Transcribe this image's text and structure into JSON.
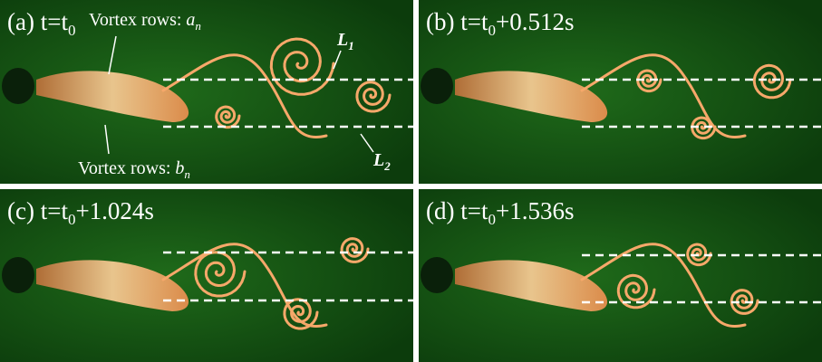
{
  "panels": [
    {
      "prefix": "(a) t=t",
      "sub": "0",
      "suffix": ""
    },
    {
      "prefix": "(b) t=t",
      "sub": "0",
      "suffix": "+0.512s"
    },
    {
      "prefix": "(c) t=t",
      "sub": "0",
      "suffix": "+1.024s"
    },
    {
      "prefix": "(d) t=t",
      "sub": "0",
      "suffix": "+1.536s"
    }
  ],
  "annotations": {
    "row_a": {
      "text": "Vortex rows: ",
      "var": "a",
      "sub": "n"
    },
    "row_b": {
      "text": "Vortex rows: ",
      "var": "b",
      "sub": "n"
    },
    "line1": {
      "var": "L",
      "sub": "1"
    },
    "line2": {
      "var": "L",
      "sub": "2"
    }
  }
}
